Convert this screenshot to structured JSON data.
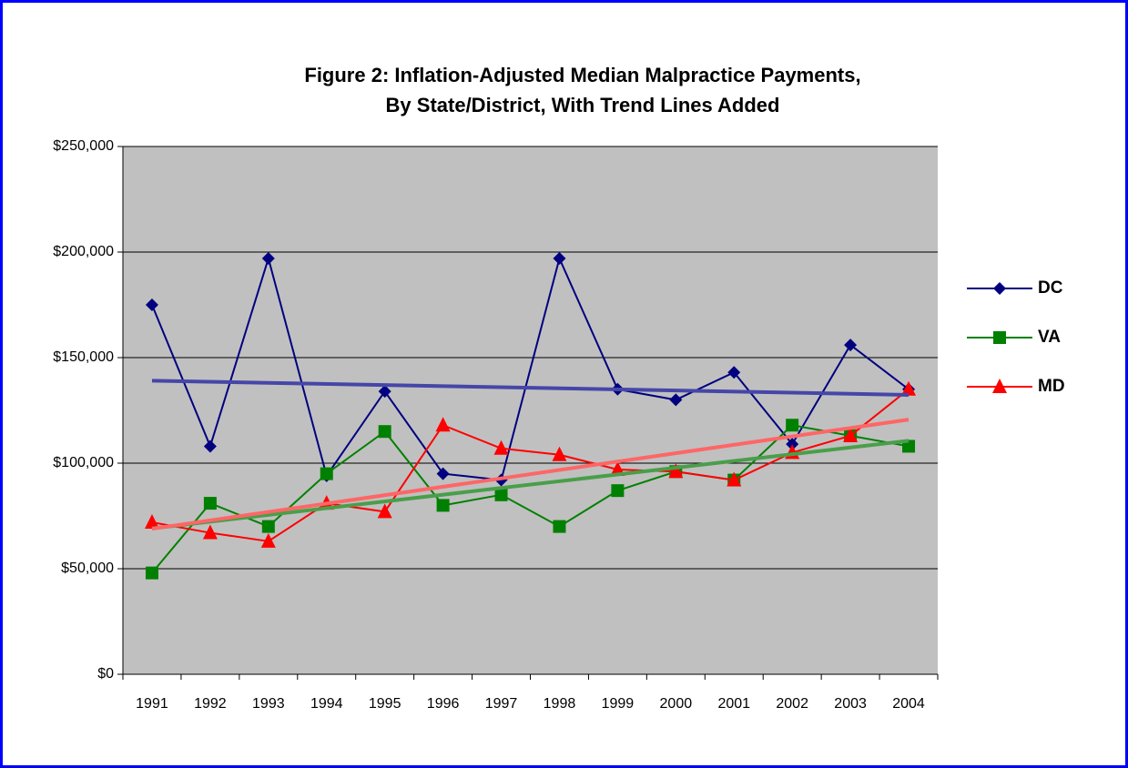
{
  "chart_data": {
    "type": "line",
    "title": [
      "Figure 2: Inflation-Adjusted Median Malpractice Payments,",
      "By State/District, With Trend Lines Added"
    ],
    "categories": [
      "1991",
      "1992",
      "1993",
      "1994",
      "1995",
      "1996",
      "1997",
      "1998",
      "1999",
      "2000",
      "2001",
      "2002",
      "2003",
      "2004"
    ],
    "series": [
      {
        "name": "DC",
        "color": "#000080",
        "marker": "diamond",
        "trend_color": "#4646a8",
        "values": [
          175000,
          108000,
          197000,
          94000,
          134000,
          95000,
          92000,
          197000,
          135000,
          130000,
          143000,
          109000,
          156000,
          135000
        ]
      },
      {
        "name": "VA",
        "color": "#008000",
        "marker": "square",
        "trend_color": "#4a9e4a",
        "values": [
          48000,
          81000,
          70000,
          95000,
          115000,
          80000,
          85000,
          70000,
          87000,
          96000,
          92000,
          118000,
          113000,
          108000
        ]
      },
      {
        "name": "MD",
        "color": "#ff0000",
        "marker": "triangle",
        "trend_color": "#ff6666",
        "values": [
          72000,
          67000,
          63000,
          81000,
          77000,
          118000,
          107000,
          104000,
          97000,
          96000,
          92000,
          105000,
          113000,
          135000
        ]
      }
    ],
    "ylim": [
      0,
      250000
    ],
    "yticks": [
      {
        "value": 0,
        "label": "$0"
      },
      {
        "value": 50000,
        "label": "$50,000"
      },
      {
        "value": 100000,
        "label": "$100,000"
      },
      {
        "value": 150000,
        "label": "$150,000"
      },
      {
        "value": 200000,
        "label": "$200,000"
      },
      {
        "value": 250000,
        "label": "$250,000"
      }
    ],
    "grid": true,
    "trendline": true,
    "legend": "right",
    "plot_background": "#c0c0c0"
  }
}
